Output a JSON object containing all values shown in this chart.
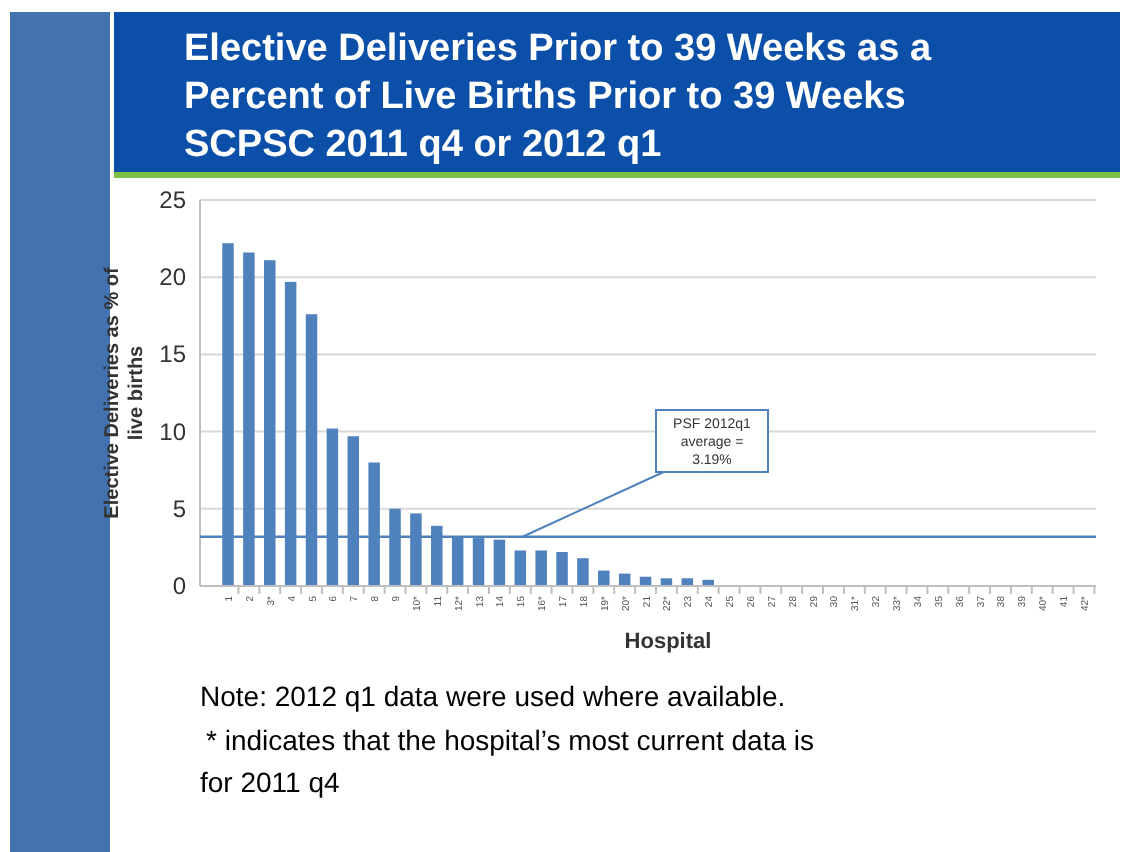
{
  "chart_data": {
    "type": "bar",
    "title": "Elective Deliveries Prior to 39 Weeks as a Percent of Live Births Prior to 39 Weeks SCPSC 2011 q4 or 2012 q1",
    "xlabel": "Hospital",
    "ylabel": "Elective Deliveries as % of live births",
    "categories": [
      "1",
      "2",
      "3*",
      "4",
      "5",
      "6",
      "7",
      "8",
      "9",
      "10*",
      "11",
      "12*",
      "13",
      "14",
      "15",
      "16*",
      "17",
      "18",
      "19*",
      "20*",
      "21",
      "22*",
      "23",
      "24",
      "25",
      "26",
      "27",
      "28",
      "29",
      "30",
      "31*",
      "32",
      "33*",
      "34",
      "35",
      "36",
      "37",
      "38",
      "39",
      "40*",
      "41",
      "42*"
    ],
    "values": [
      22.2,
      21.6,
      21.1,
      19.7,
      17.6,
      10.2,
      9.7,
      8.0,
      5.0,
      4.7,
      3.9,
      3.2,
      3.1,
      3.0,
      2.3,
      2.3,
      2.2,
      1.8,
      1.0,
      0.8,
      0.6,
      0.5,
      0.5,
      0.4,
      0,
      0,
      0,
      0,
      0,
      0,
      0,
      0,
      0,
      0,
      0,
      0,
      0,
      0,
      0,
      0,
      0,
      0
    ],
    "color": "#4f81bd",
    "ylim": [
      0,
      25
    ],
    "yticks": [
      0,
      5,
      10,
      15,
      20,
      25
    ],
    "grid": "y",
    "ref_lines": [
      {
        "axis": "y",
        "value": 3.19,
        "label": "PSF 2012q1 average = 3.19%",
        "color": "#4f81bd"
      }
    ],
    "annotations": [
      "Note: 2012 q1 data were used where available.",
      "* indicates that the hospital’s most current data is for 2011 q4"
    ]
  }
}
